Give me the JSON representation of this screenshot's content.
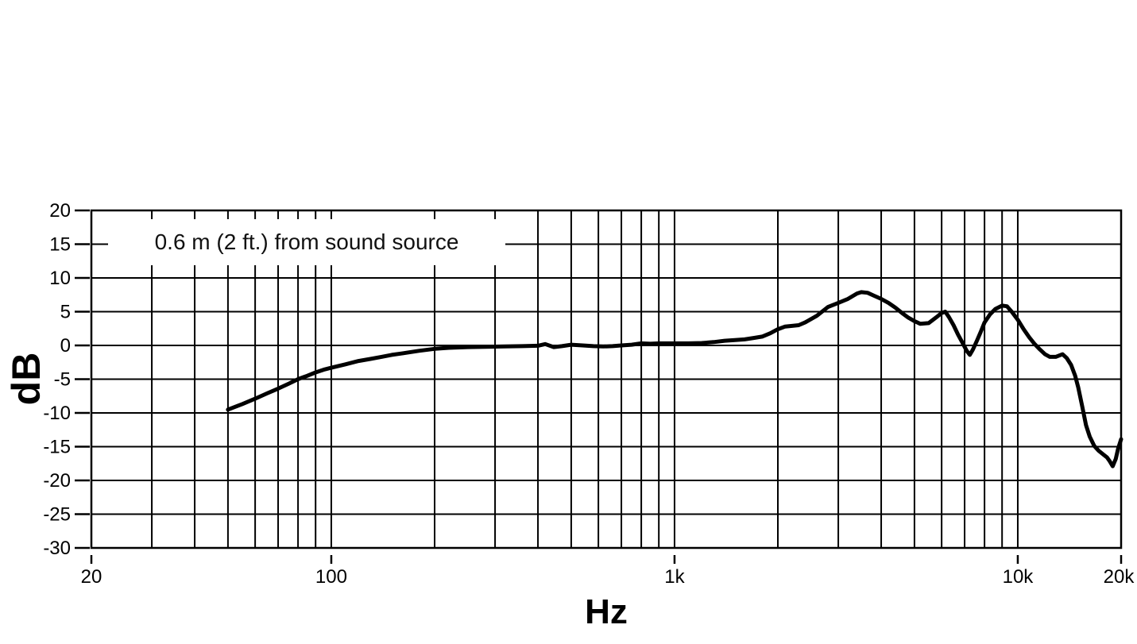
{
  "colors": {
    "background": "#ffffff",
    "grid": "#000000",
    "curve": "#000000",
    "text": "#000000"
  },
  "chart_data": {
    "type": "line",
    "title": "",
    "annotation": "0.6 m (2 ft.) from sound source",
    "xlabel": "Hz",
    "ylabel": "dB",
    "x_scale": "log",
    "grid": true,
    "x_range": [
      20,
      20000
    ],
    "y_range": [
      -30,
      20
    ],
    "y_gridline_step_db": 5,
    "y_tick_labels": [
      {
        "db": 20,
        "label": "20"
      },
      {
        "db": 15,
        "label": "15"
      },
      {
        "db": 10,
        "label": "10"
      },
      {
        "db": 5,
        "label": "5"
      },
      {
        "db": 0,
        "label": "0"
      },
      {
        "db": -5,
        "label": "-5"
      },
      {
        "db": -10,
        "label": "-10"
      },
      {
        "db": -15,
        "label": "-15"
      },
      {
        "db": -20,
        "label": "-20"
      },
      {
        "db": -25,
        "label": "-25"
      },
      {
        "db": -30,
        "label": "-30"
      }
    ],
    "x_gridlines_hz": [
      20,
      30,
      40,
      50,
      60,
      70,
      80,
      90,
      100,
      200,
      300,
      400,
      500,
      600,
      700,
      800,
      900,
      1000,
      2000,
      3000,
      4000,
      5000,
      6000,
      7000,
      8000,
      9000,
      10000,
      20000
    ],
    "x_tick_labels": [
      {
        "hz": 20,
        "label": "20"
      },
      {
        "hz": 100,
        "label": "100"
      },
      {
        "hz": 1000,
        "label": "1k"
      },
      {
        "hz": 10000,
        "label": "10k"
      },
      {
        "hz": 20000,
        "label": "20k"
      }
    ],
    "series": [
      {
        "name": "frequency-response",
        "color": "#000000",
        "points_hz_db": [
          [
            50,
            -9.5
          ],
          [
            55,
            -8.7
          ],
          [
            60,
            -7.9
          ],
          [
            65,
            -7.1
          ],
          [
            70,
            -6.4
          ],
          [
            75,
            -5.7
          ],
          [
            80,
            -5.0
          ],
          [
            85,
            -4.5
          ],
          [
            90,
            -4.0
          ],
          [
            95,
            -3.6
          ],
          [
            100,
            -3.3
          ],
          [
            110,
            -2.8
          ],
          [
            120,
            -2.3
          ],
          [
            130,
            -2.0
          ],
          [
            140,
            -1.7
          ],
          [
            150,
            -1.4
          ],
          [
            160,
            -1.2
          ],
          [
            180,
            -0.8
          ],
          [
            200,
            -0.5
          ],
          [
            220,
            -0.35
          ],
          [
            250,
            -0.25
          ],
          [
            280,
            -0.2
          ],
          [
            320,
            -0.15
          ],
          [
            360,
            -0.1
          ],
          [
            400,
            -0.05
          ],
          [
            420,
            0.2
          ],
          [
            445,
            -0.25
          ],
          [
            470,
            -0.1
          ],
          [
            500,
            0.1
          ],
          [
            540,
            0.0
          ],
          [
            580,
            -0.1
          ],
          [
            620,
            -0.15
          ],
          [
            660,
            -0.1
          ],
          [
            700,
            0.0
          ],
          [
            750,
            0.1
          ],
          [
            800,
            0.3
          ],
          [
            850,
            0.25
          ],
          [
            900,
            0.3
          ],
          [
            1000,
            0.3
          ],
          [
            1100,
            0.3
          ],
          [
            1200,
            0.35
          ],
          [
            1300,
            0.5
          ],
          [
            1400,
            0.7
          ],
          [
            1500,
            0.8
          ],
          [
            1600,
            0.9
          ],
          [
            1700,
            1.1
          ],
          [
            1800,
            1.3
          ],
          [
            1900,
            1.8
          ],
          [
            2000,
            2.4
          ],
          [
            2100,
            2.8
          ],
          [
            2200,
            2.9
          ],
          [
            2300,
            3.0
          ],
          [
            2400,
            3.4
          ],
          [
            2600,
            4.4
          ],
          [
            2800,
            5.7
          ],
          [
            3000,
            6.3
          ],
          [
            3200,
            6.9
          ],
          [
            3400,
            7.7
          ],
          [
            3500,
            7.9
          ],
          [
            3650,
            7.8
          ],
          [
            3800,
            7.4
          ],
          [
            4000,
            6.9
          ],
          [
            4200,
            6.3
          ],
          [
            4400,
            5.6
          ],
          [
            4600,
            4.8
          ],
          [
            4800,
            4.1
          ],
          [
            5000,
            3.6
          ],
          [
            5200,
            3.2
          ],
          [
            5500,
            3.3
          ],
          [
            5800,
            4.2
          ],
          [
            6000,
            4.8
          ],
          [
            6150,
            5.0
          ],
          [
            6300,
            4.2
          ],
          [
            6500,
            3.0
          ],
          [
            6700,
            1.6
          ],
          [
            6900,
            0.4
          ],
          [
            7100,
            -0.8
          ],
          [
            7250,
            -1.4
          ],
          [
            7400,
            -0.6
          ],
          [
            7600,
            0.7
          ],
          [
            7800,
            2.0
          ],
          [
            8000,
            3.4
          ],
          [
            8300,
            4.6
          ],
          [
            8600,
            5.4
          ],
          [
            9000,
            5.9
          ],
          [
            9300,
            5.8
          ],
          [
            9600,
            5.0
          ],
          [
            10000,
            3.8
          ],
          [
            10400,
            2.4
          ],
          [
            10800,
            1.2
          ],
          [
            11200,
            0.2
          ],
          [
            11600,
            -0.6
          ],
          [
            12000,
            -1.3
          ],
          [
            12400,
            -1.7
          ],
          [
            12900,
            -1.7
          ],
          [
            13500,
            -1.3
          ],
          [
            13900,
            -1.9
          ],
          [
            14300,
            -2.9
          ],
          [
            14700,
            -4.5
          ],
          [
            15000,
            -6.2
          ],
          [
            15400,
            -9.0
          ],
          [
            15800,
            -11.8
          ],
          [
            16200,
            -13.5
          ],
          [
            16700,
            -14.9
          ],
          [
            17200,
            -15.6
          ],
          [
            17700,
            -16.1
          ],
          [
            18200,
            -16.6
          ],
          [
            18500,
            -17.1
          ],
          [
            18900,
            -17.9
          ],
          [
            19300,
            -16.8
          ],
          [
            19600,
            -15.3
          ],
          [
            20000,
            -13.9
          ]
        ]
      }
    ]
  }
}
